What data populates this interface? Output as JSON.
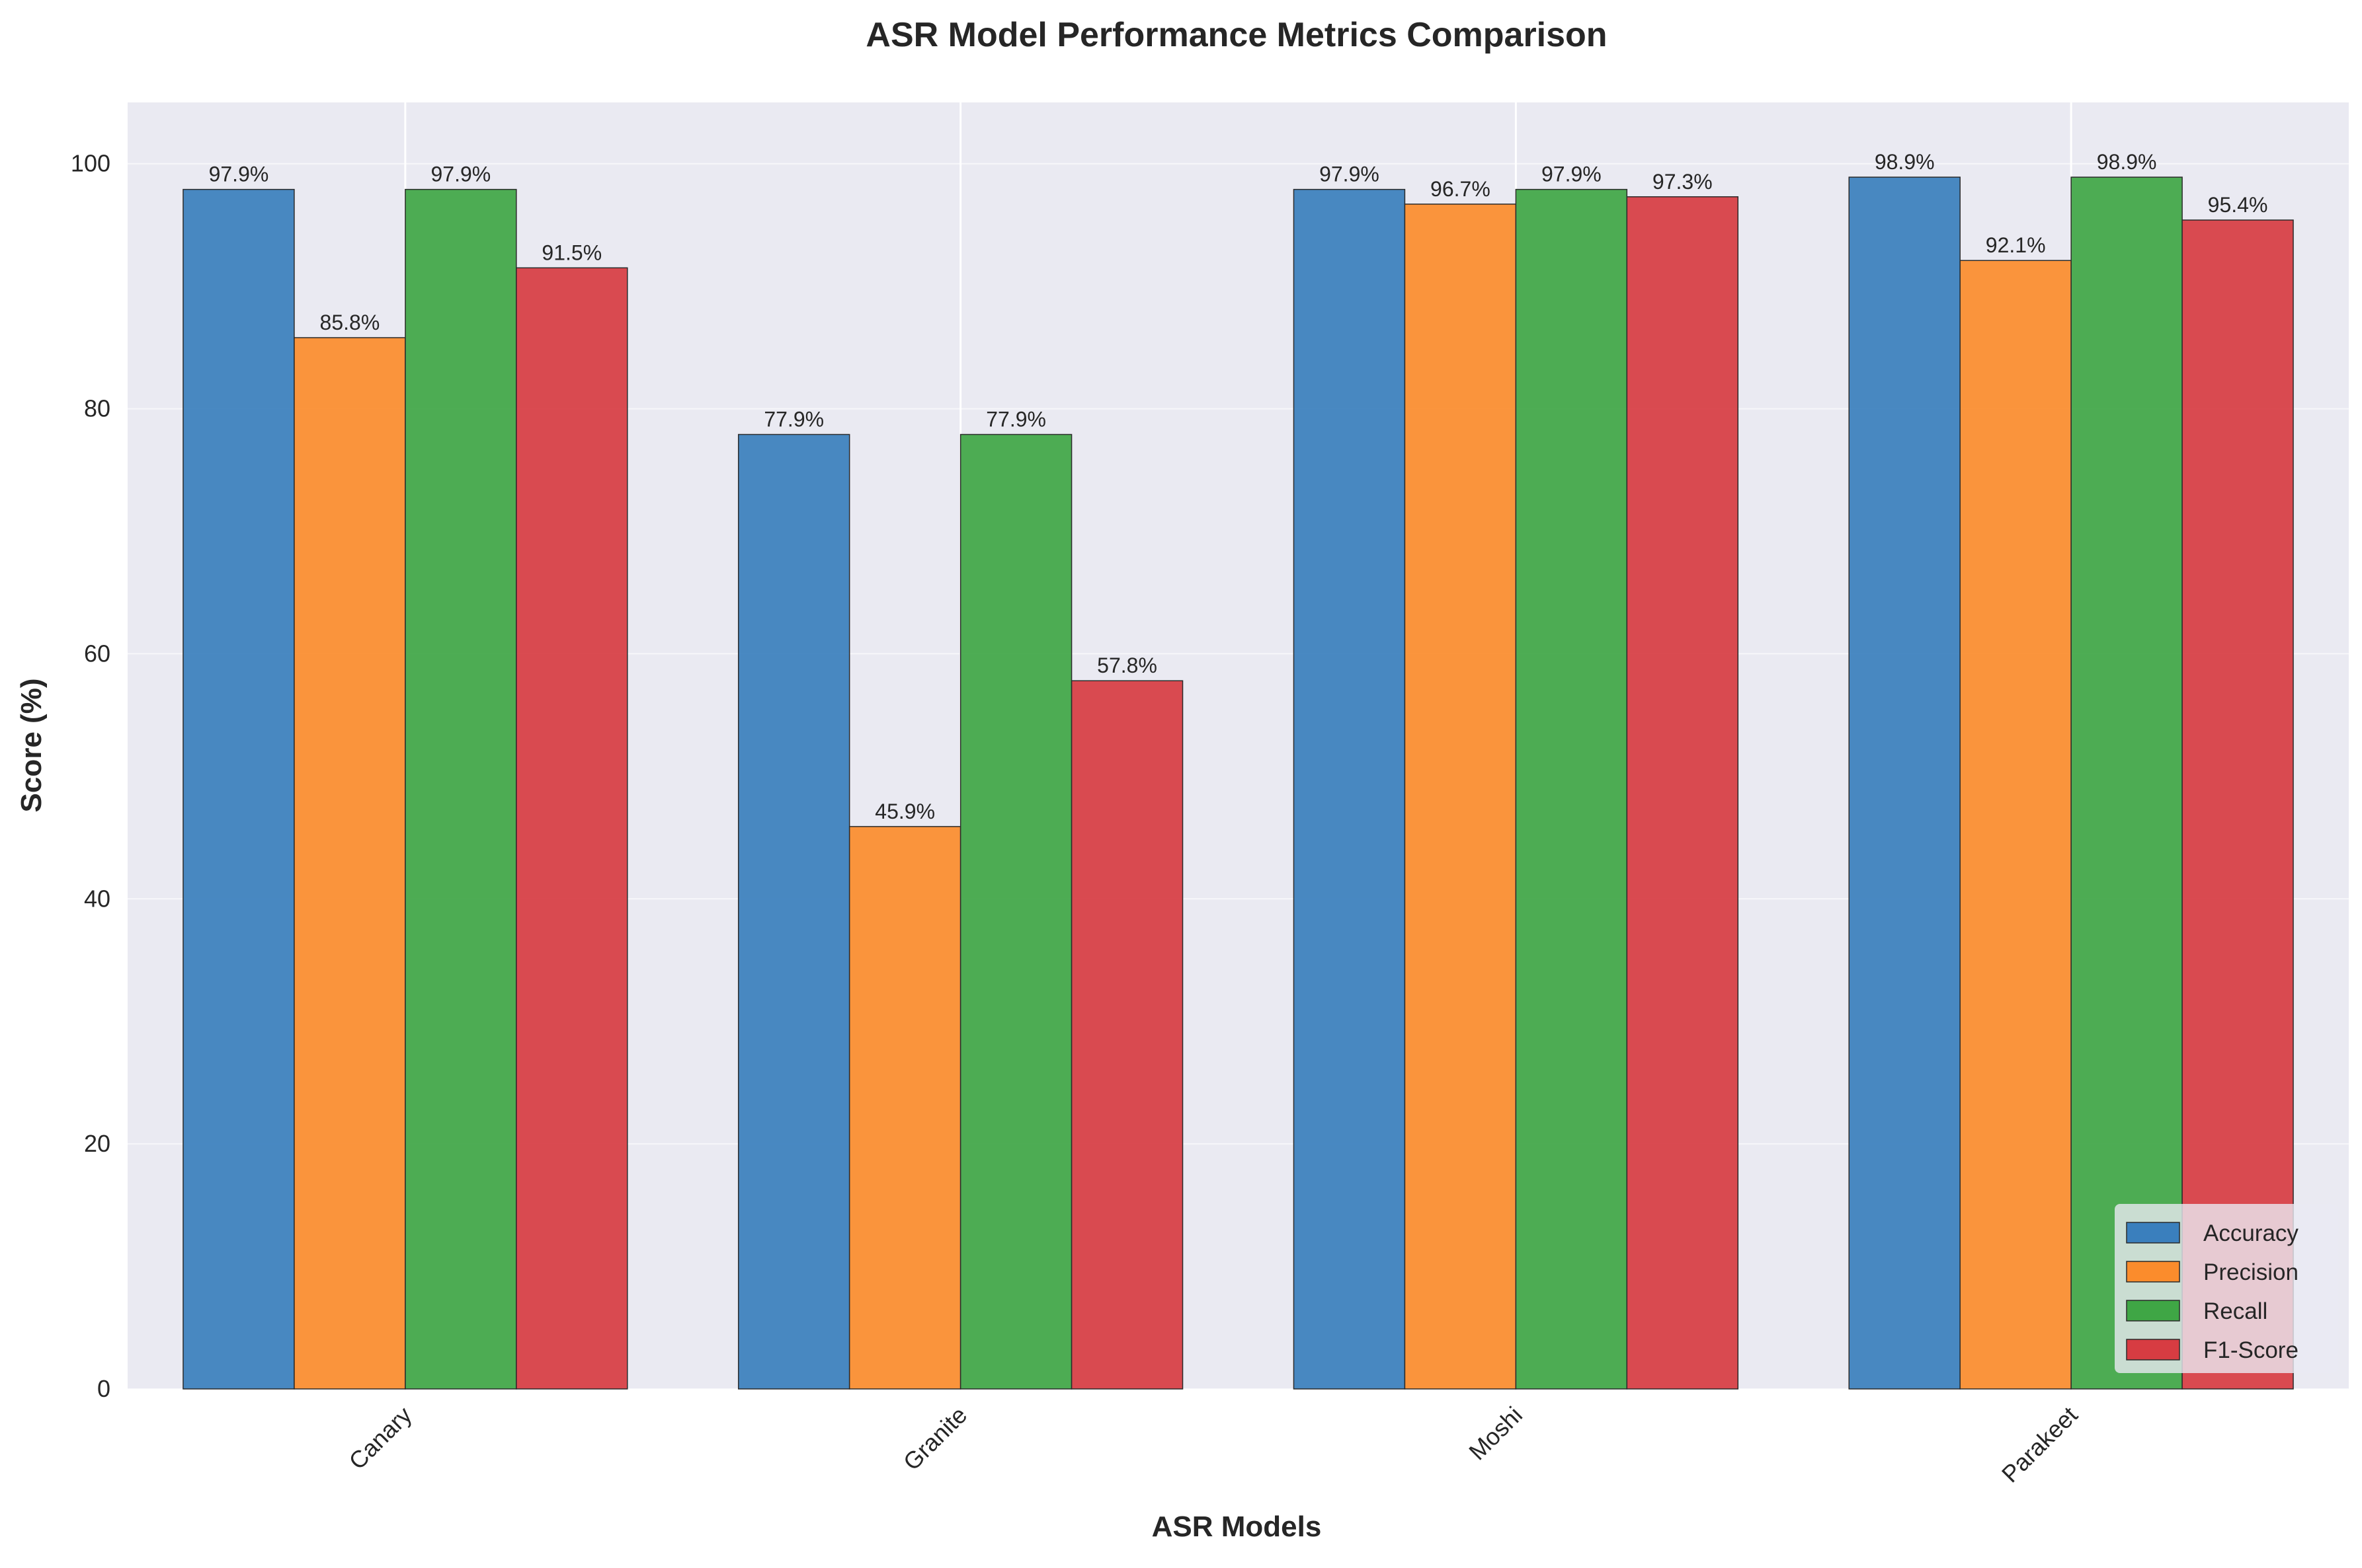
{
  "chart_data": {
    "type": "bar",
    "title": "ASR Model Performance Metrics Comparison",
    "xlabel": "ASR Models",
    "ylabel": "Score (%)",
    "categories": [
      "Canary",
      "Granite",
      "Moshi",
      "Parakeet"
    ],
    "series": [
      {
        "name": "Accuracy",
        "color": "#3a7fbd",
        "values": [
          97.9,
          77.9,
          97.9,
          98.9
        ],
        "labels": [
          "97.9%",
          "77.9%",
          "97.9%",
          "98.9%"
        ]
      },
      {
        "name": "Precision",
        "color": "#fb8c2c",
        "values": [
          85.8,
          45.9,
          96.7,
          92.1
        ],
        "labels": [
          "85.8%",
          "45.9%",
          "96.7%",
          "92.1%"
        ]
      },
      {
        "name": "Recall",
        "color": "#3fa645",
        "values": [
          97.9,
          77.9,
          97.9,
          98.9
        ],
        "labels": [
          "97.9%",
          "77.9%",
          "97.9%",
          "98.9%"
        ]
      },
      {
        "name": "F1-Score",
        "color": "#d73c42",
        "values": [
          91.5,
          57.8,
          97.3,
          95.4
        ],
        "labels": [
          "91.5%",
          "57.8%",
          "97.3%",
          "95.4%"
        ]
      }
    ],
    "ylim": [
      0,
      105
    ],
    "yticks": [
      "0",
      "20",
      "40",
      "60",
      "80",
      "100"
    ],
    "grid": true,
    "legend_position": "lower-right",
    "background_color": "#eaeaf2"
  }
}
